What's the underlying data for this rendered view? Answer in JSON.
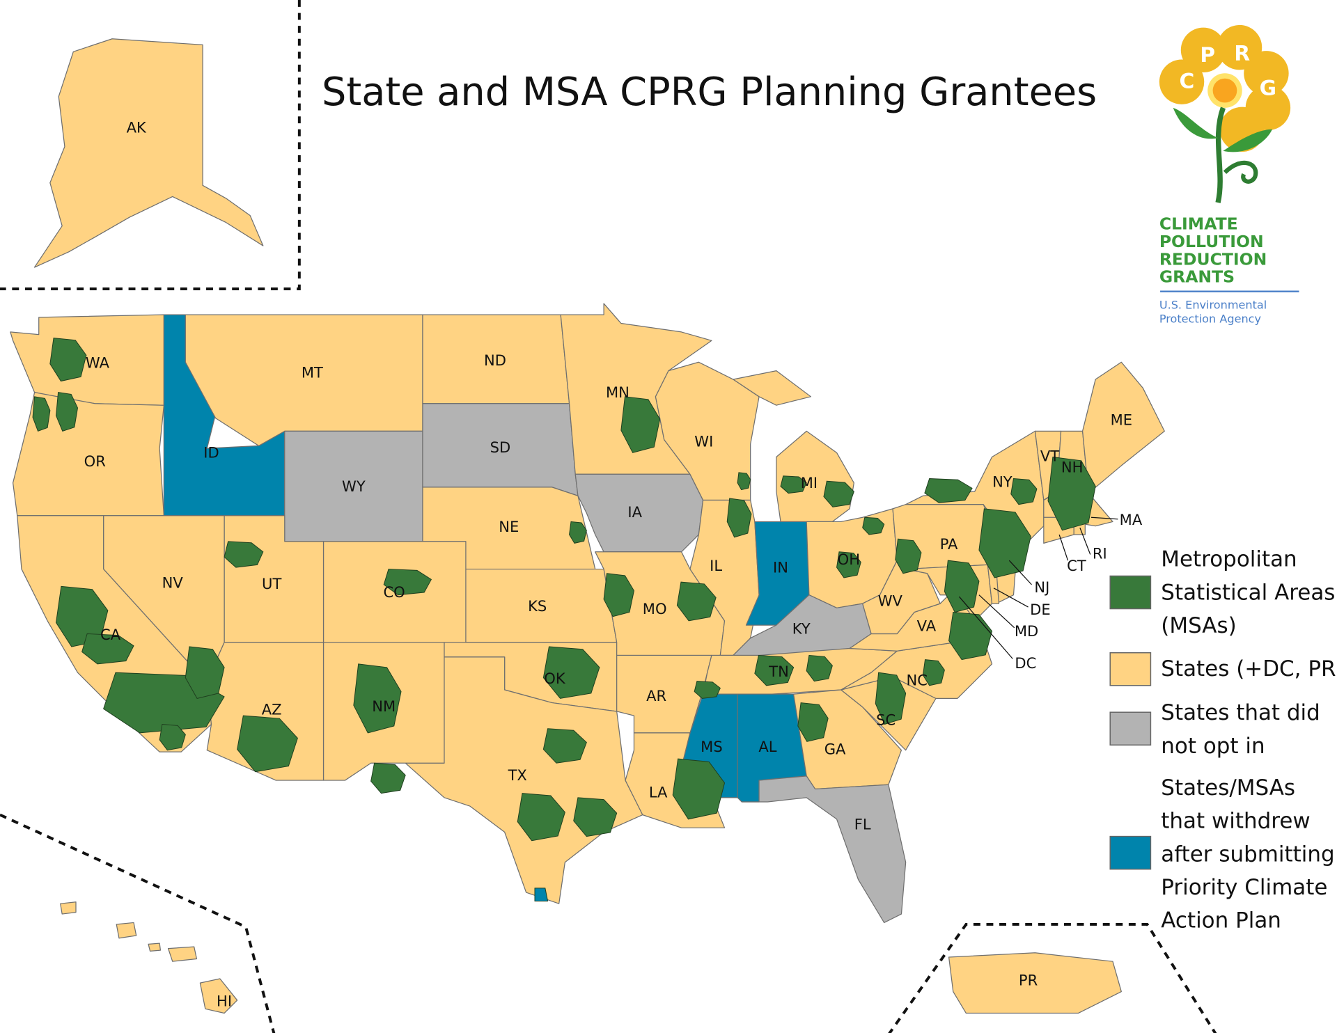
{
  "title": "State and MSA CPRG Planning Grantees",
  "colors": {
    "msa": "#38793A",
    "state": "#FFD383",
    "not_opted_in": "#B3B3B3",
    "withdrew": "#0084AC",
    "border": "#6f6f6f"
  },
  "logo": {
    "letters": [
      "C",
      "P",
      "R",
      "G"
    ],
    "lines": [
      "CLIMATE",
      "POLLUTION",
      "REDUCTION",
      "GRANTS"
    ],
    "agency": [
      "U.S. Environmental",
      "Protection Agency"
    ]
  },
  "legend": [
    {
      "key": "msa",
      "lines": [
        "Metropolitan",
        "Statistical Areas",
        "(MSAs)"
      ]
    },
    {
      "key": "state",
      "lines": [
        "States (+DC, PR)"
      ]
    },
    {
      "key": "not_opted_in",
      "lines": [
        "States that did",
        "not opt in"
      ]
    },
    {
      "key": "withdrew",
      "lines": [
        "States/MSAs",
        "that withdrew",
        "after submitting",
        "Priority Climate",
        "Action Plan"
      ]
    }
  ],
  "states": [
    {
      "abbr": "AK",
      "status": "state"
    },
    {
      "abbr": "HI",
      "status": "state"
    },
    {
      "abbr": "PR",
      "status": "state"
    },
    {
      "abbr": "WA",
      "status": "state"
    },
    {
      "abbr": "OR",
      "status": "state"
    },
    {
      "abbr": "CA",
      "status": "state"
    },
    {
      "abbr": "ID",
      "status": "withdrew"
    },
    {
      "abbr": "NV",
      "status": "state"
    },
    {
      "abbr": "MT",
      "status": "state"
    },
    {
      "abbr": "WY",
      "status": "not_opted_in"
    },
    {
      "abbr": "UT",
      "status": "state"
    },
    {
      "abbr": "AZ",
      "status": "state"
    },
    {
      "abbr": "CO",
      "status": "state"
    },
    {
      "abbr": "NM",
      "status": "state"
    },
    {
      "abbr": "ND",
      "status": "state"
    },
    {
      "abbr": "SD",
      "status": "not_opted_in"
    },
    {
      "abbr": "NE",
      "status": "state"
    },
    {
      "abbr": "KS",
      "status": "state"
    },
    {
      "abbr": "OK",
      "status": "state"
    },
    {
      "abbr": "TX",
      "status": "state"
    },
    {
      "abbr": "MN",
      "status": "state"
    },
    {
      "abbr": "IA",
      "status": "not_opted_in"
    },
    {
      "abbr": "MO",
      "status": "state"
    },
    {
      "abbr": "AR",
      "status": "state"
    },
    {
      "abbr": "LA",
      "status": "state"
    },
    {
      "abbr": "WI",
      "status": "state"
    },
    {
      "abbr": "IL",
      "status": "state"
    },
    {
      "abbr": "MI",
      "status": "state"
    },
    {
      "abbr": "IN",
      "status": "withdrew"
    },
    {
      "abbr": "OH",
      "status": "state"
    },
    {
      "abbr": "KY",
      "status": "not_opted_in"
    },
    {
      "abbr": "TN",
      "status": "state"
    },
    {
      "abbr": "MS",
      "status": "withdrew"
    },
    {
      "abbr": "AL",
      "status": "withdrew"
    },
    {
      "abbr": "GA",
      "status": "state"
    },
    {
      "abbr": "FL",
      "status": "not_opted_in"
    },
    {
      "abbr": "SC",
      "status": "state"
    },
    {
      "abbr": "NC",
      "status": "state"
    },
    {
      "abbr": "VA",
      "status": "state"
    },
    {
      "abbr": "WV",
      "status": "state"
    },
    {
      "abbr": "PA",
      "status": "state"
    },
    {
      "abbr": "NY",
      "status": "state"
    },
    {
      "abbr": "VT",
      "status": "state"
    },
    {
      "abbr": "NH",
      "status": "state"
    },
    {
      "abbr": "ME",
      "status": "state"
    },
    {
      "abbr": "MA",
      "status": "state"
    },
    {
      "abbr": "CT",
      "status": "state"
    },
    {
      "abbr": "RI",
      "status": "state"
    },
    {
      "abbr": "NJ",
      "status": "state"
    },
    {
      "abbr": "DE",
      "status": "state"
    },
    {
      "abbr": "MD",
      "status": "state"
    },
    {
      "abbr": "DC",
      "status": "state"
    }
  ]
}
